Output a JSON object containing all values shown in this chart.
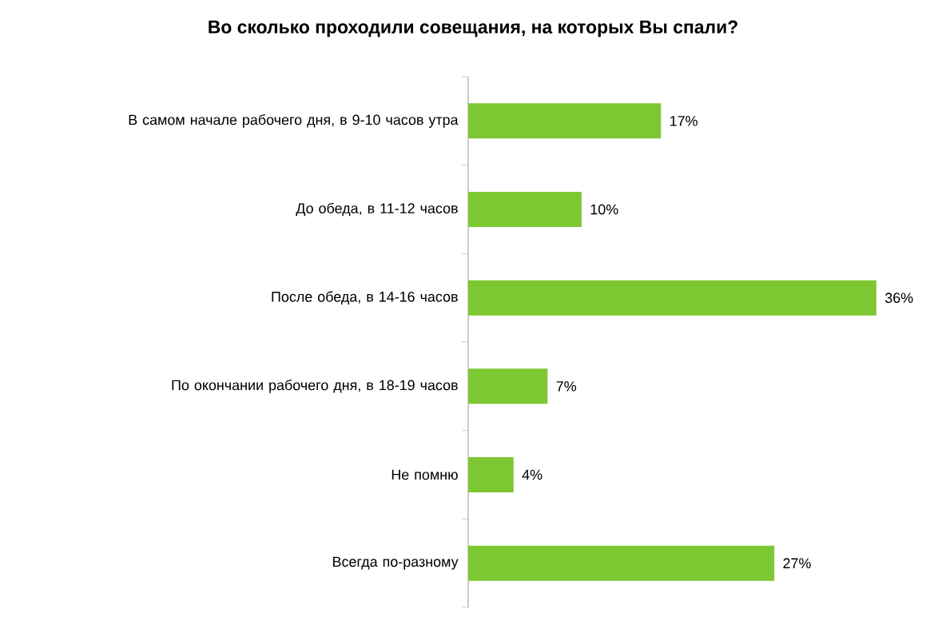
{
  "chart_data": {
    "type": "bar",
    "orientation": "horizontal",
    "title": "Во сколько проходили совещания, на которых Вы спали?",
    "categories": [
      "В самом начале рабочего дня, в 9-10 часов утра",
      "До обеда, в 11-12 часов",
      "После обеда, в 14-16 часов",
      "По окончании рабочего дня, в 18-19 часов",
      "Не помню",
      "Всегда по-разному"
    ],
    "values": [
      17,
      10,
      36,
      7,
      4,
      27
    ],
    "value_labels": [
      "17%",
      "10%",
      "36%",
      "7%",
      "4%",
      "27%"
    ],
    "color": "#7dc832"
  }
}
